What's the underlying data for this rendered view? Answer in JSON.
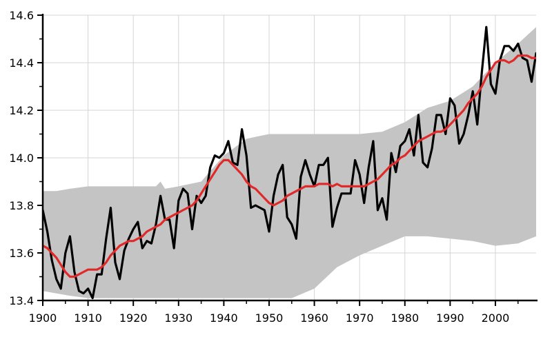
{
  "chart_data": {
    "type": "line",
    "title": "",
    "xlabel": "",
    "ylabel": "",
    "xlim": [
      1900,
      2009
    ],
    "ylim": [
      13.4,
      14.6
    ],
    "grid": true,
    "x_ticks": [
      1900,
      1910,
      1920,
      1930,
      1940,
      1950,
      1960,
      1970,
      1980,
      1990,
      2000
    ],
    "x_tick_labels": [
      "1900",
      "1910",
      "1920",
      "1930",
      "1940",
      "1950",
      "1960",
      "1970",
      "1980",
      "1990",
      "2000"
    ],
    "y_ticks": [
      13.4,
      13.6,
      13.8,
      14.0,
      14.2,
      14.4,
      14.6
    ],
    "y_tick_labels": [
      "13.4",
      "13.6",
      "13.8",
      "14.0",
      "14.2",
      "14.4",
      "14.6"
    ],
    "colors": {
      "band": "#c4c4c4",
      "annual": "#000000",
      "smoothed": "#e02a2a",
      "grid": "#d4d4d4"
    },
    "band": {
      "x": [
        1900,
        1903,
        1906,
        1910,
        1915,
        1920,
        1925,
        1926,
        1927,
        1930,
        1935,
        1940,
        1945,
        1950,
        1955,
        1960,
        1965,
        1970,
        1975,
        1980,
        1985,
        1990,
        1995,
        2000,
        2005,
        2009
      ],
      "upper": [
        13.86,
        13.86,
        13.87,
        13.88,
        13.88,
        13.88,
        13.88,
        13.9,
        13.87,
        13.88,
        13.9,
        14.01,
        14.08,
        14.1,
        14.1,
        14.1,
        14.1,
        14.1,
        14.11,
        14.15,
        14.21,
        14.24,
        14.3,
        14.4,
        14.48,
        14.55
      ],
      "lower": [
        13.44,
        13.43,
        13.42,
        13.41,
        13.41,
        13.41,
        13.41,
        13.41,
        13.41,
        13.41,
        13.41,
        13.41,
        13.41,
        13.41,
        13.41,
        13.45,
        13.54,
        13.59,
        13.63,
        13.67,
        13.67,
        13.66,
        13.65,
        13.63,
        13.64,
        13.67
      ]
    },
    "series": [
      {
        "x": [
          1900,
          1901,
          1902,
          1903,
          1904,
          1905,
          1906,
          1907,
          1908,
          1909,
          1910,
          1911,
          1912,
          1913,
          1914,
          1915,
          1916,
          1917,
          1918,
          1919,
          1920,
          1921,
          1922,
          1923,
          1924,
          1925,
          1926,
          1927,
          1928,
          1929,
          1930,
          1931,
          1932,
          1933,
          1934,
          1935,
          1936,
          1937,
          1938,
          1939,
          1940,
          1941,
          1942,
          1943,
          1944,
          1945,
          1946,
          1947,
          1948,
          1949,
          1950,
          1951,
          1952,
          1953,
          1954,
          1955,
          1956,
          1957,
          1958,
          1959,
          1960,
          1961,
          1962,
          1963,
          1964,
          1965,
          1966,
          1967,
          1968,
          1969,
          1970,
          1971,
          1972,
          1973,
          1974,
          1975,
          1976,
          1977,
          1978,
          1979,
          1980,
          1981,
          1982,
          1983,
          1984,
          1985,
          1986,
          1987,
          1988,
          1989,
          1990,
          1991,
          1992,
          1993,
          1994,
          1995,
          1996,
          1997,
          1998,
          1999,
          2000,
          2001,
          2002,
          2003,
          2004,
          2005,
          2006,
          2007,
          2008,
          2009
        ],
        "values": [
          13.78,
          13.69,
          13.57,
          13.49,
          13.45,
          13.6,
          13.67,
          13.52,
          13.44,
          13.43,
          13.45,
          13.41,
          13.51,
          13.51,
          13.66,
          13.79,
          13.56,
          13.49,
          13.61,
          13.66,
          13.7,
          13.73,
          13.62,
          13.65,
          13.64,
          13.72,
          13.84,
          13.74,
          13.74,
          13.62,
          13.82,
          13.87,
          13.85,
          13.7,
          13.84,
          13.81,
          13.84,
          13.96,
          14.01,
          14.0,
          14.02,
          14.07,
          13.98,
          13.97,
          14.12,
          14.01,
          13.79,
          13.8,
          13.79,
          13.78,
          13.69,
          13.84,
          13.93,
          13.97,
          13.75,
          13.72,
          13.66,
          13.92,
          13.99,
          13.93,
          13.88,
          13.97,
          13.97,
          14.0,
          13.71,
          13.79,
          13.85,
          13.85,
          13.85,
          13.99,
          13.93,
          13.81,
          13.96,
          14.07,
          13.78,
          13.83,
          13.74,
          14.02,
          13.94,
          14.05,
          14.07,
          14.12,
          14.01,
          14.18,
          13.98,
          13.96,
          14.04,
          14.18,
          14.18,
          14.1,
          14.25,
          14.22,
          14.06,
          14.1,
          14.18,
          14.28,
          14.14,
          14.36,
          14.55,
          14.31,
          14.27,
          14.41,
          14.47,
          14.47,
          14.45,
          14.48,
          14.42,
          14.41,
          14.32,
          14.44
        ]
      },
      {
        "x": [
          1900,
          1901,
          1902,
          1903,
          1904,
          1905,
          1906,
          1907,
          1908,
          1909,
          1910,
          1911,
          1912,
          1913,
          1914,
          1915,
          1916,
          1917,
          1918,
          1919,
          1920,
          1921,
          1922,
          1923,
          1924,
          1925,
          1926,
          1927,
          1928,
          1929,
          1930,
          1931,
          1932,
          1933,
          1934,
          1935,
          1936,
          1937,
          1938,
          1939,
          1940,
          1941,
          1942,
          1943,
          1944,
          1945,
          1946,
          1947,
          1948,
          1949,
          1950,
          1951,
          1952,
          1953,
          1954,
          1955,
          1956,
          1957,
          1958,
          1959,
          1960,
          1961,
          1962,
          1963,
          1964,
          1965,
          1966,
          1967,
          1968,
          1969,
          1970,
          1971,
          1972,
          1973,
          1974,
          1975,
          1976,
          1977,
          1978,
          1979,
          1980,
          1981,
          1982,
          1983,
          1984,
          1985,
          1986,
          1987,
          1988,
          1989,
          1990,
          1991,
          1992,
          1993,
          1994,
          1995,
          1996,
          1997,
          1998,
          1999,
          2000,
          2001,
          2002,
          2003,
          2004,
          2005,
          2006,
          2007,
          2008,
          2009
        ],
        "values": [
          13.63,
          13.62,
          13.6,
          13.58,
          13.55,
          13.52,
          13.5,
          13.5,
          13.51,
          13.52,
          13.53,
          13.53,
          13.53,
          13.54,
          13.56,
          13.59,
          13.61,
          13.63,
          13.64,
          13.65,
          13.65,
          13.66,
          13.67,
          13.69,
          13.7,
          13.71,
          13.72,
          13.74,
          13.75,
          13.76,
          13.77,
          13.78,
          13.79,
          13.8,
          13.82,
          13.85,
          13.88,
          13.91,
          13.94,
          13.97,
          13.99,
          13.99,
          13.97,
          13.95,
          13.93,
          13.9,
          13.88,
          13.87,
          13.85,
          13.83,
          13.81,
          13.8,
          13.81,
          13.82,
          13.84,
          13.85,
          13.86,
          13.87,
          13.88,
          13.88,
          13.88,
          13.89,
          13.89,
          13.89,
          13.88,
          13.89,
          13.88,
          13.88,
          13.88,
          13.88,
          13.88,
          13.88,
          13.89,
          13.9,
          13.91,
          13.93,
          13.95,
          13.97,
          13.98,
          14.0,
          14.01,
          14.03,
          14.05,
          14.07,
          14.08,
          14.09,
          14.1,
          14.11,
          14.11,
          14.12,
          14.14,
          14.16,
          14.18,
          14.2,
          14.23,
          14.25,
          14.27,
          14.3,
          14.34,
          14.37,
          14.4,
          14.41,
          14.41,
          14.4,
          14.41,
          14.43,
          14.43,
          14.43,
          14.42,
          14.42
        ]
      }
    ]
  }
}
